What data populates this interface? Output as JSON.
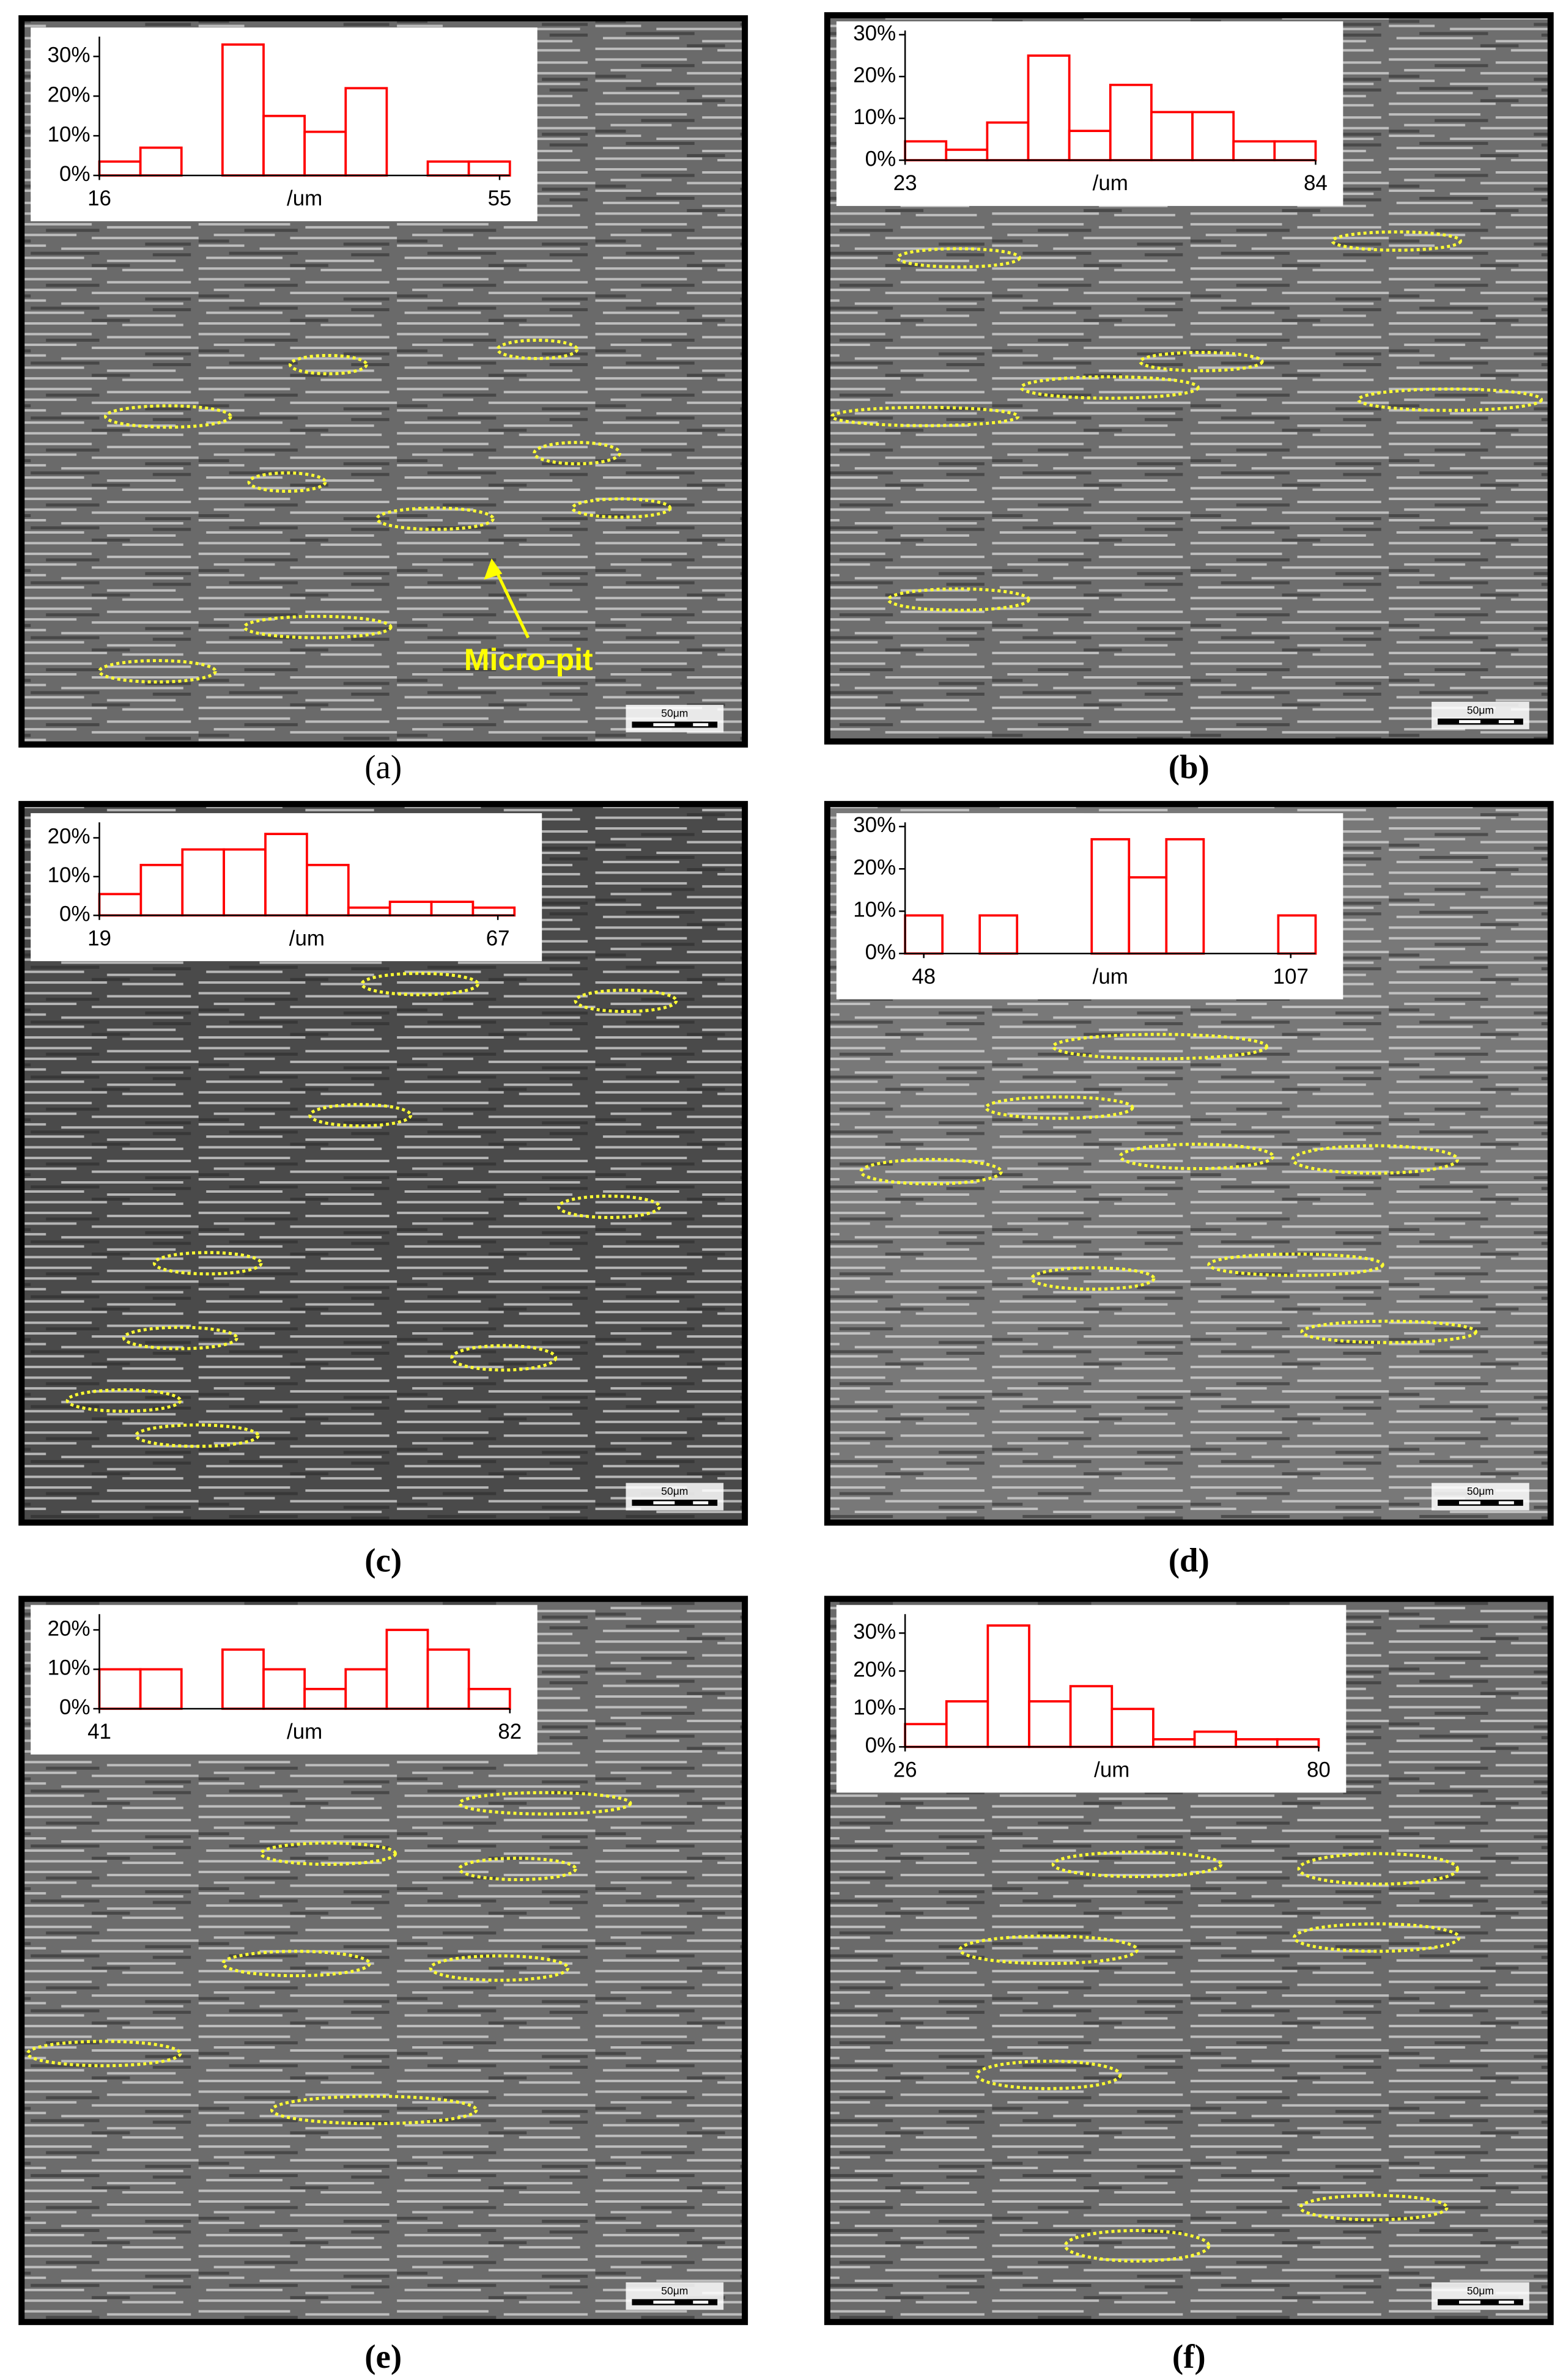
{
  "chart_data": [
    {
      "type": "histogram",
      "label": "(a)",
      "x_label": "/um",
      "annotation": "Micro-pit",
      "scale_bar": "50μm",
      "color": "#ff0000",
      "bins": [
        16,
        20,
        24,
        28,
        32,
        36,
        40,
        44,
        48,
        52,
        56
      ],
      "values": [
        3.5,
        7,
        0,
        33,
        15,
        11,
        22,
        0,
        3.5,
        3.5
      ],
      "xlim": [
        16,
        56
      ],
      "xticks": [
        16,
        55
      ],
      "ylim": [
        0,
        35
      ],
      "yticks": [
        {
          "value": 0,
          "label": "0%"
        },
        {
          "value": 10,
          "label": "10%"
        },
        {
          "value": 20,
          "label": "20%"
        },
        {
          "value": 30,
          "label": "30%"
        }
      ]
    },
    {
      "type": "histogram",
      "label": "(b)",
      "x_label": "/um",
      "scale_bar": "50μm",
      "color": "#ff0000",
      "bins": [
        23,
        29.1,
        35.2,
        41.3,
        47.4,
        53.5,
        59.6,
        65.7,
        71.8,
        77.9,
        84
      ],
      "values": [
        4.5,
        2.5,
        9,
        25,
        7,
        18,
        11.5,
        11.5,
        4.5,
        4.5
      ],
      "xlim": [
        23,
        84
      ],
      "xticks": [
        23,
        84
      ],
      "ylim": [
        0,
        31
      ],
      "yticks": [
        {
          "value": 0,
          "label": "0%"
        },
        {
          "value": 10,
          "label": "10%"
        },
        {
          "value": 20,
          "label": "20%"
        },
        {
          "value": 30,
          "label": "30%"
        }
      ]
    },
    {
      "type": "histogram",
      "label": "(c)",
      "x_label": "/um",
      "scale_bar": "50μm",
      "color": "#ff0000",
      "bins": [
        19,
        24,
        29,
        34,
        39,
        44,
        49,
        54,
        59,
        64,
        69
      ],
      "values": [
        5.5,
        13,
        17,
        17,
        21,
        13,
        2,
        3.5,
        3.5,
        2
      ],
      "xlim": [
        19,
        69
      ],
      "xticks": [
        19,
        67
      ],
      "ylim": [
        0,
        24
      ],
      "yticks": [
        {
          "value": 0,
          "label": "0%"
        },
        {
          "value": 10,
          "label": "10%"
        },
        {
          "value": 20,
          "label": "20%"
        }
      ]
    },
    {
      "type": "histogram",
      "label": "(d)",
      "x_label": "/um",
      "scale_bar": "50μm",
      "color": "#ff0000",
      "bins": [
        45,
        51,
        57,
        63,
        69,
        75,
        81,
        87,
        93,
        99,
        105,
        111
      ],
      "values": [
        9,
        0,
        9,
        0,
        0,
        27,
        18,
        27,
        0,
        0,
        9
      ],
      "xlim": [
        45,
        111
      ],
      "xticks": [
        48,
        107
      ],
      "ylim": [
        0,
        31
      ],
      "yticks": [
        {
          "value": 0,
          "label": "0%"
        },
        {
          "value": 10,
          "label": "10%"
        },
        {
          "value": 20,
          "label": "20%"
        },
        {
          "value": 30,
          "label": "30%"
        }
      ]
    },
    {
      "type": "histogram",
      "label": "(e)",
      "x_label": "/um",
      "scale_bar": "50μm",
      "color": "#ff0000",
      "bins": [
        41,
        45.1,
        49.2,
        53.3,
        57.4,
        61.5,
        65.6,
        69.7,
        73.8,
        77.9,
        82
      ],
      "values": [
        10,
        10,
        0,
        15,
        10,
        5,
        10,
        20,
        15,
        5
      ],
      "xlim": [
        41,
        82
      ],
      "xticks": [
        41,
        82
      ],
      "ylim": [
        0,
        24
      ],
      "yticks": [
        {
          "value": 0,
          "label": "0%"
        },
        {
          "value": 10,
          "label": "10%"
        },
        {
          "value": 20,
          "label": "20%"
        }
      ]
    },
    {
      "type": "histogram",
      "label": "(f)",
      "x_label": "/um",
      "scale_bar": "50μm",
      "color": "#ff0000",
      "bins": [
        26,
        31.4,
        36.8,
        42.2,
        47.6,
        53,
        58.4,
        63.8,
        69.2,
        74.6,
        80
      ],
      "values": [
        6,
        12,
        32,
        12,
        16,
        10,
        2,
        4,
        2,
        2
      ],
      "xlim": [
        26,
        80
      ],
      "xticks": [
        26,
        80
      ],
      "ylim": [
        0,
        35
      ],
      "yticks": [
        {
          "value": 0,
          "label": "0%"
        },
        {
          "value": 10,
          "label": "10%"
        },
        {
          "value": 20,
          "label": "20%"
        },
        {
          "value": 30,
          "label": "30%"
        }
      ]
    }
  ]
}
